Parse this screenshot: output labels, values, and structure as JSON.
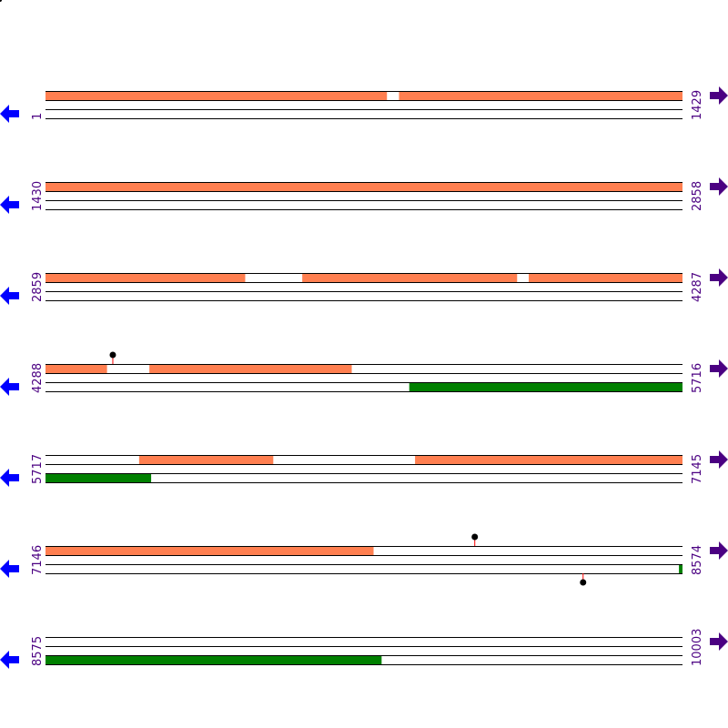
{
  "colors": {
    "top_strand_feature": "#ff7f50",
    "bottom_strand_feature": "#008000",
    "label": "#4b0082",
    "left_arrow": "#0000ff",
    "right_arrow": "#4b0082",
    "marker": "#000000",
    "marker_stem": "#ff0000"
  },
  "icons": {
    "left": "arrow-left-icon",
    "right": "arrow-right-icon",
    "marker": "lollipop-marker-icon"
  },
  "rows": [
    {
      "start": 1,
      "end": 1429,
      "start_label": "1",
      "end_label": "1429",
      "top": [
        [
          1,
          766
        ],
        [
          794,
          1429
        ]
      ],
      "bottom": [],
      "markers": []
    },
    {
      "start": 1430,
      "end": 2858,
      "start_label": "1430",
      "end_label": "2858",
      "top": [
        [
          1430,
          2858
        ]
      ],
      "bottom": [],
      "markers": []
    },
    {
      "start": 2859,
      "end": 4287,
      "start_label": "2859",
      "end_label": "4287",
      "top": [
        [
          2859,
          3306
        ],
        [
          3435,
          3916
        ],
        [
          3943,
          4287
        ]
      ],
      "bottom": [],
      "markers": []
    },
    {
      "start": 4288,
      "end": 5716,
      "start_label": "4288",
      "end_label": "5716",
      "top": [
        [
          4288,
          4425
        ],
        [
          4521,
          4974
        ]
      ],
      "bottom": [
        [
          5104,
          5716
        ]
      ],
      "markers": [
        {
          "pos": 4439,
          "strand": "top"
        }
      ]
    },
    {
      "start": 5717,
      "end": 7145,
      "start_label": "5717",
      "end_label": "7145",
      "top": [
        [
          5927,
          6227
        ],
        [
          6546,
          7145
        ]
      ],
      "bottom": [
        [
          5717,
          5953
        ]
      ],
      "markers": []
    },
    {
      "start": 7146,
      "end": 8574,
      "start_label": "7146",
      "end_label": "8574",
      "top": [
        [
          7146,
          7881
        ]
      ],
      "bottom": [
        [
          8567,
          8574
        ]
      ],
      "markers": [
        {
          "pos": 8109,
          "strand": "top"
        },
        {
          "pos": 8352,
          "strand": "bottom"
        }
      ]
    },
    {
      "start": 8575,
      "end": 10003,
      "start_label": "8575",
      "end_label": "10003",
      "top": [],
      "bottom": [
        [
          8575,
          9328
        ]
      ],
      "markers": []
    }
  ]
}
